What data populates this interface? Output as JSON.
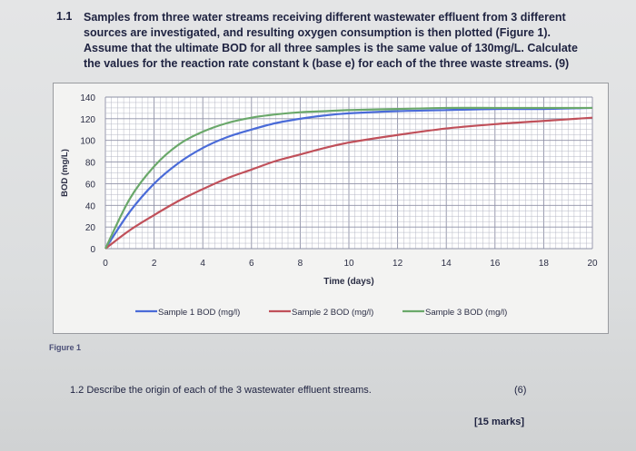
{
  "question": {
    "number": "1.1",
    "text": "Samples from three water streams receiving different wastewater effluent from 3 different sources are investigated, and resulting oxygen consumption is then plotted (Figure 1). Assume that the ultimate BOD for all three samples is the same value of 130mg/L. Calculate the values for the reaction rate constant k (base e) for each of the three waste streams. (9)"
  },
  "figure_label": "Figure 1",
  "question2": {
    "text": "1.2 Describe the origin of each of the 3 wastewater effluent streams.",
    "marks": "(6)"
  },
  "total_marks": "[15 marks]",
  "colors": {
    "sample1": "#4a6bd8",
    "sample2": "#c0505a",
    "sample3": "#6aa86a",
    "grid": "#b5b7c4"
  },
  "chart_data": {
    "type": "line",
    "xlabel": "Time (days)",
    "ylabel": "BOD (mg/L)",
    "xlim": [
      0,
      20
    ],
    "ylim": [
      0,
      140
    ],
    "xticks": [
      0,
      2,
      4,
      6,
      8,
      10,
      12,
      14,
      16,
      18,
      20
    ],
    "yticks": [
      0,
      20,
      40,
      60,
      80,
      100,
      120,
      140
    ],
    "grid": true,
    "legend": "bottom",
    "series": [
      {
        "name": "Sample 1 BOD (mg/l)",
        "x": [
          0,
          1,
          2,
          3,
          4,
          5,
          6,
          7,
          8,
          9,
          10,
          12,
          14,
          16,
          18,
          20
        ],
        "values": [
          0,
          34,
          60,
          79,
          93,
          103,
          110,
          116,
          120,
          123,
          125,
          127,
          128,
          129,
          129,
          130
        ]
      },
      {
        "name": "Sample 2 BOD (mg/l)",
        "x": [
          0,
          1,
          2,
          3,
          4,
          5,
          6,
          7,
          8,
          9,
          10,
          12,
          14,
          16,
          18,
          20
        ],
        "values": [
          0,
          17,
          31,
          44,
          55,
          65,
          73,
          81,
          87,
          93,
          98,
          105,
          111,
          115,
          118,
          121
        ]
      },
      {
        "name": "Sample 3 BOD (mg/l)",
        "x": [
          0,
          1,
          2,
          3,
          4,
          5,
          6,
          7,
          8,
          9,
          10,
          12,
          14,
          16,
          18,
          20
        ],
        "values": [
          0,
          46,
          76,
          96,
          108,
          116,
          121,
          124,
          126,
          127,
          128,
          129,
          130,
          130,
          130,
          130
        ]
      }
    ]
  }
}
